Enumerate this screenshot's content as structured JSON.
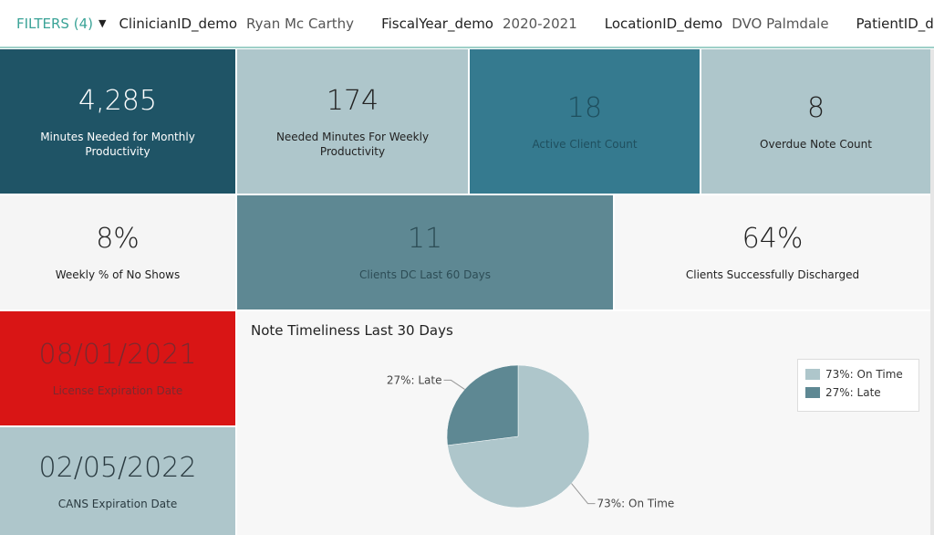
{
  "filters": {
    "label": "FILTERS",
    "count": "(4)",
    "items": [
      {
        "key": "ClinicianID_demo",
        "value": "Ryan Mc Carthy"
      },
      {
        "key": "FiscalYear_demo",
        "value": "2020-2021"
      },
      {
        "key": "LocationID_demo",
        "value": "DVO Palmdale"
      },
      {
        "key": "PatientID_demo",
        "value": ""
      }
    ]
  },
  "tiles": [
    {
      "value": "4,285",
      "label": "Minutes Needed for Monthly Productivity",
      "bg": "#1f5466",
      "fg": "#ffffff"
    },
    {
      "value": "174",
      "label": "Needed Minutes For Weekly Productivity",
      "bg": "#aec6cb",
      "fg": "#222222"
    },
    {
      "value": "18",
      "label": "Active Client Count",
      "bg": "#357a8f",
      "fg": "#1f4f5e"
    },
    {
      "value": "8",
      "label": "Overdue Note Count",
      "bg": "#aec6cb",
      "fg": "#222222"
    },
    {
      "value": "8%",
      "label": "Weekly % of No Shows",
      "bg": "#f5f5f5",
      "fg": "#222222"
    },
    {
      "value": "11",
      "label": "Clients DC Last 60 Days",
      "bg": "#5e8893",
      "fg": "#2d4d56"
    },
    {
      "value": "64%",
      "label": "Clients Successfully Discharged",
      "bg": "#f7f7f7",
      "fg": "#222222"
    },
    {
      "value": "08/01/2021",
      "label": "License Expiration Date",
      "bg": "#d91515",
      "fg": "#7a2a30"
    },
    {
      "value": "02/05/2022",
      "label": "CANS Expiration Date",
      "bg": "#aec6cb",
      "fg": "#2a3a40"
    }
  ],
  "chart_data": {
    "type": "pie",
    "title": "Note Timeliness Last 30 Days",
    "legend": "right",
    "slices": [
      {
        "name": "On Time",
        "value": 73,
        "label": "73%: On Time",
        "color": "#aec6cb"
      },
      {
        "name": "Late",
        "value": 27,
        "label": "27%: Late",
        "color": "#5e8893"
      }
    ]
  }
}
